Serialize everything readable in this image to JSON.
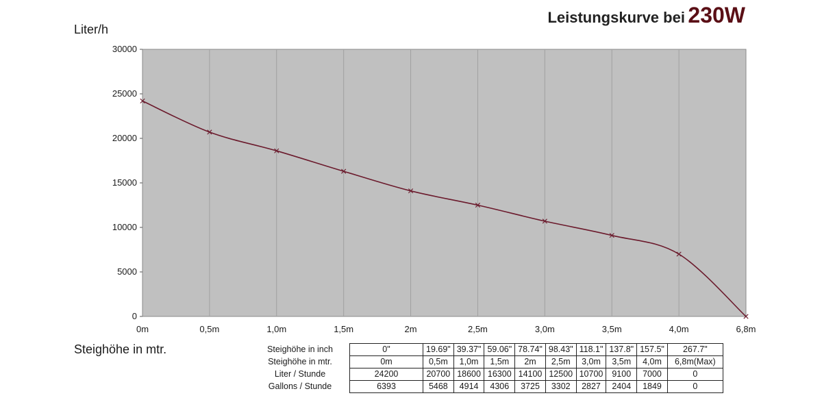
{
  "title": {
    "text": "Leistungskurve bei",
    "watt": "230W"
  },
  "colors": {
    "plot_background": "#c0c0c0",
    "line": "#6b1a2c",
    "grid": "#a0a0a0",
    "watt_accent": "#5a0f16"
  },
  "chart_data": {
    "type": "line",
    "title": "Leistungskurve bei 230W",
    "ylabel": "Liter/h",
    "xlabel": "Steighöhe in mtr.",
    "categories": [
      "0m",
      "0,5m",
      "1,0m",
      "1,5m",
      "2m",
      "2,5m",
      "3,0m",
      "3,5m",
      "4,0m",
      "6,8m"
    ],
    "values": [
      24200,
      20700,
      18600,
      16300,
      14100,
      12500,
      10700,
      9100,
      7000,
      0
    ],
    "ylim": [
      0,
      30000
    ],
    "yticks": [
      0,
      5000,
      10000,
      15000,
      20000,
      25000,
      30000
    ],
    "grid": "vertical",
    "marker": "x"
  },
  "table": {
    "rows": [
      {
        "label": "Steighöhe in inch",
        "cells": [
          "0\"",
          "19.69\"",
          "39.37\"",
          "59.06\"",
          "78.74\"",
          "98.43\"",
          "118.1\"",
          "137.8\"",
          "157.5\"",
          "267.7\""
        ]
      },
      {
        "label": "Steighöhe in mtr.",
        "cells": [
          "0m",
          "0,5m",
          "1,0m",
          "1,5m",
          "2m",
          "2,5m",
          "3,0m",
          "3,5m",
          "4,0m",
          "6,8m(Max)"
        ]
      },
      {
        "label": "Liter / Stunde",
        "cells": [
          "24200",
          "20700",
          "18600",
          "16300",
          "14100",
          "12500",
          "10700",
          "9100",
          "7000",
          "0"
        ]
      },
      {
        "label": "Gallons / Stunde",
        "cells": [
          "6393",
          "5468",
          "4914",
          "4306",
          "3725",
          "3302",
          "2827",
          "2404",
          "1849",
          "0"
        ]
      }
    ]
  }
}
